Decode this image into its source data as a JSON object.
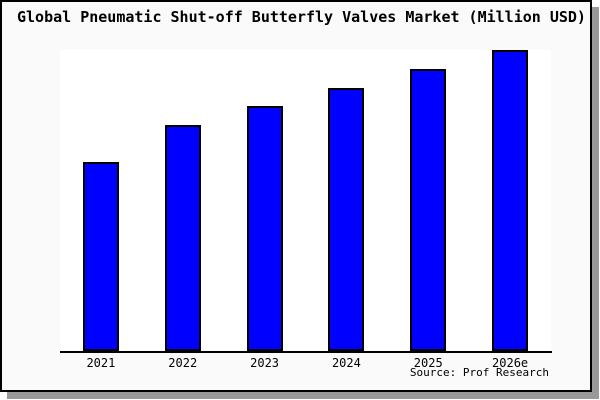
{
  "title": "Global Pneumatic Shut-off Butterfly Valves Market (Million USD)",
  "source_note": "Source: Prof Research",
  "colors": {
    "frame_background": "#fafafa",
    "frame_border": "#000000",
    "frame_shadow": "#999999",
    "plot_background": "#ffffff",
    "bar_fill": "#0000ff",
    "bar_border": "#000000",
    "axis_line": "#000000",
    "text": "#000000"
  },
  "chart_data": {
    "type": "bar",
    "title": "Global Pneumatic Shut-off Butterfly Valves Market (Million USD)",
    "categories": [
      "2021",
      "2022",
      "2023",
      "2024",
      "2025",
      "2026e"
    ],
    "values": [
      62.8,
      75.1,
      81.3,
      87.5,
      93.7,
      100
    ],
    "value_basis": "estimated percent of tallest bar; chart displays no numeric y-axis",
    "xlabel": "",
    "ylabel": "",
    "ylim": [
      0,
      100
    ],
    "grid": false,
    "legend": false,
    "annotations": [
      "Source: Prof Research"
    ]
  }
}
